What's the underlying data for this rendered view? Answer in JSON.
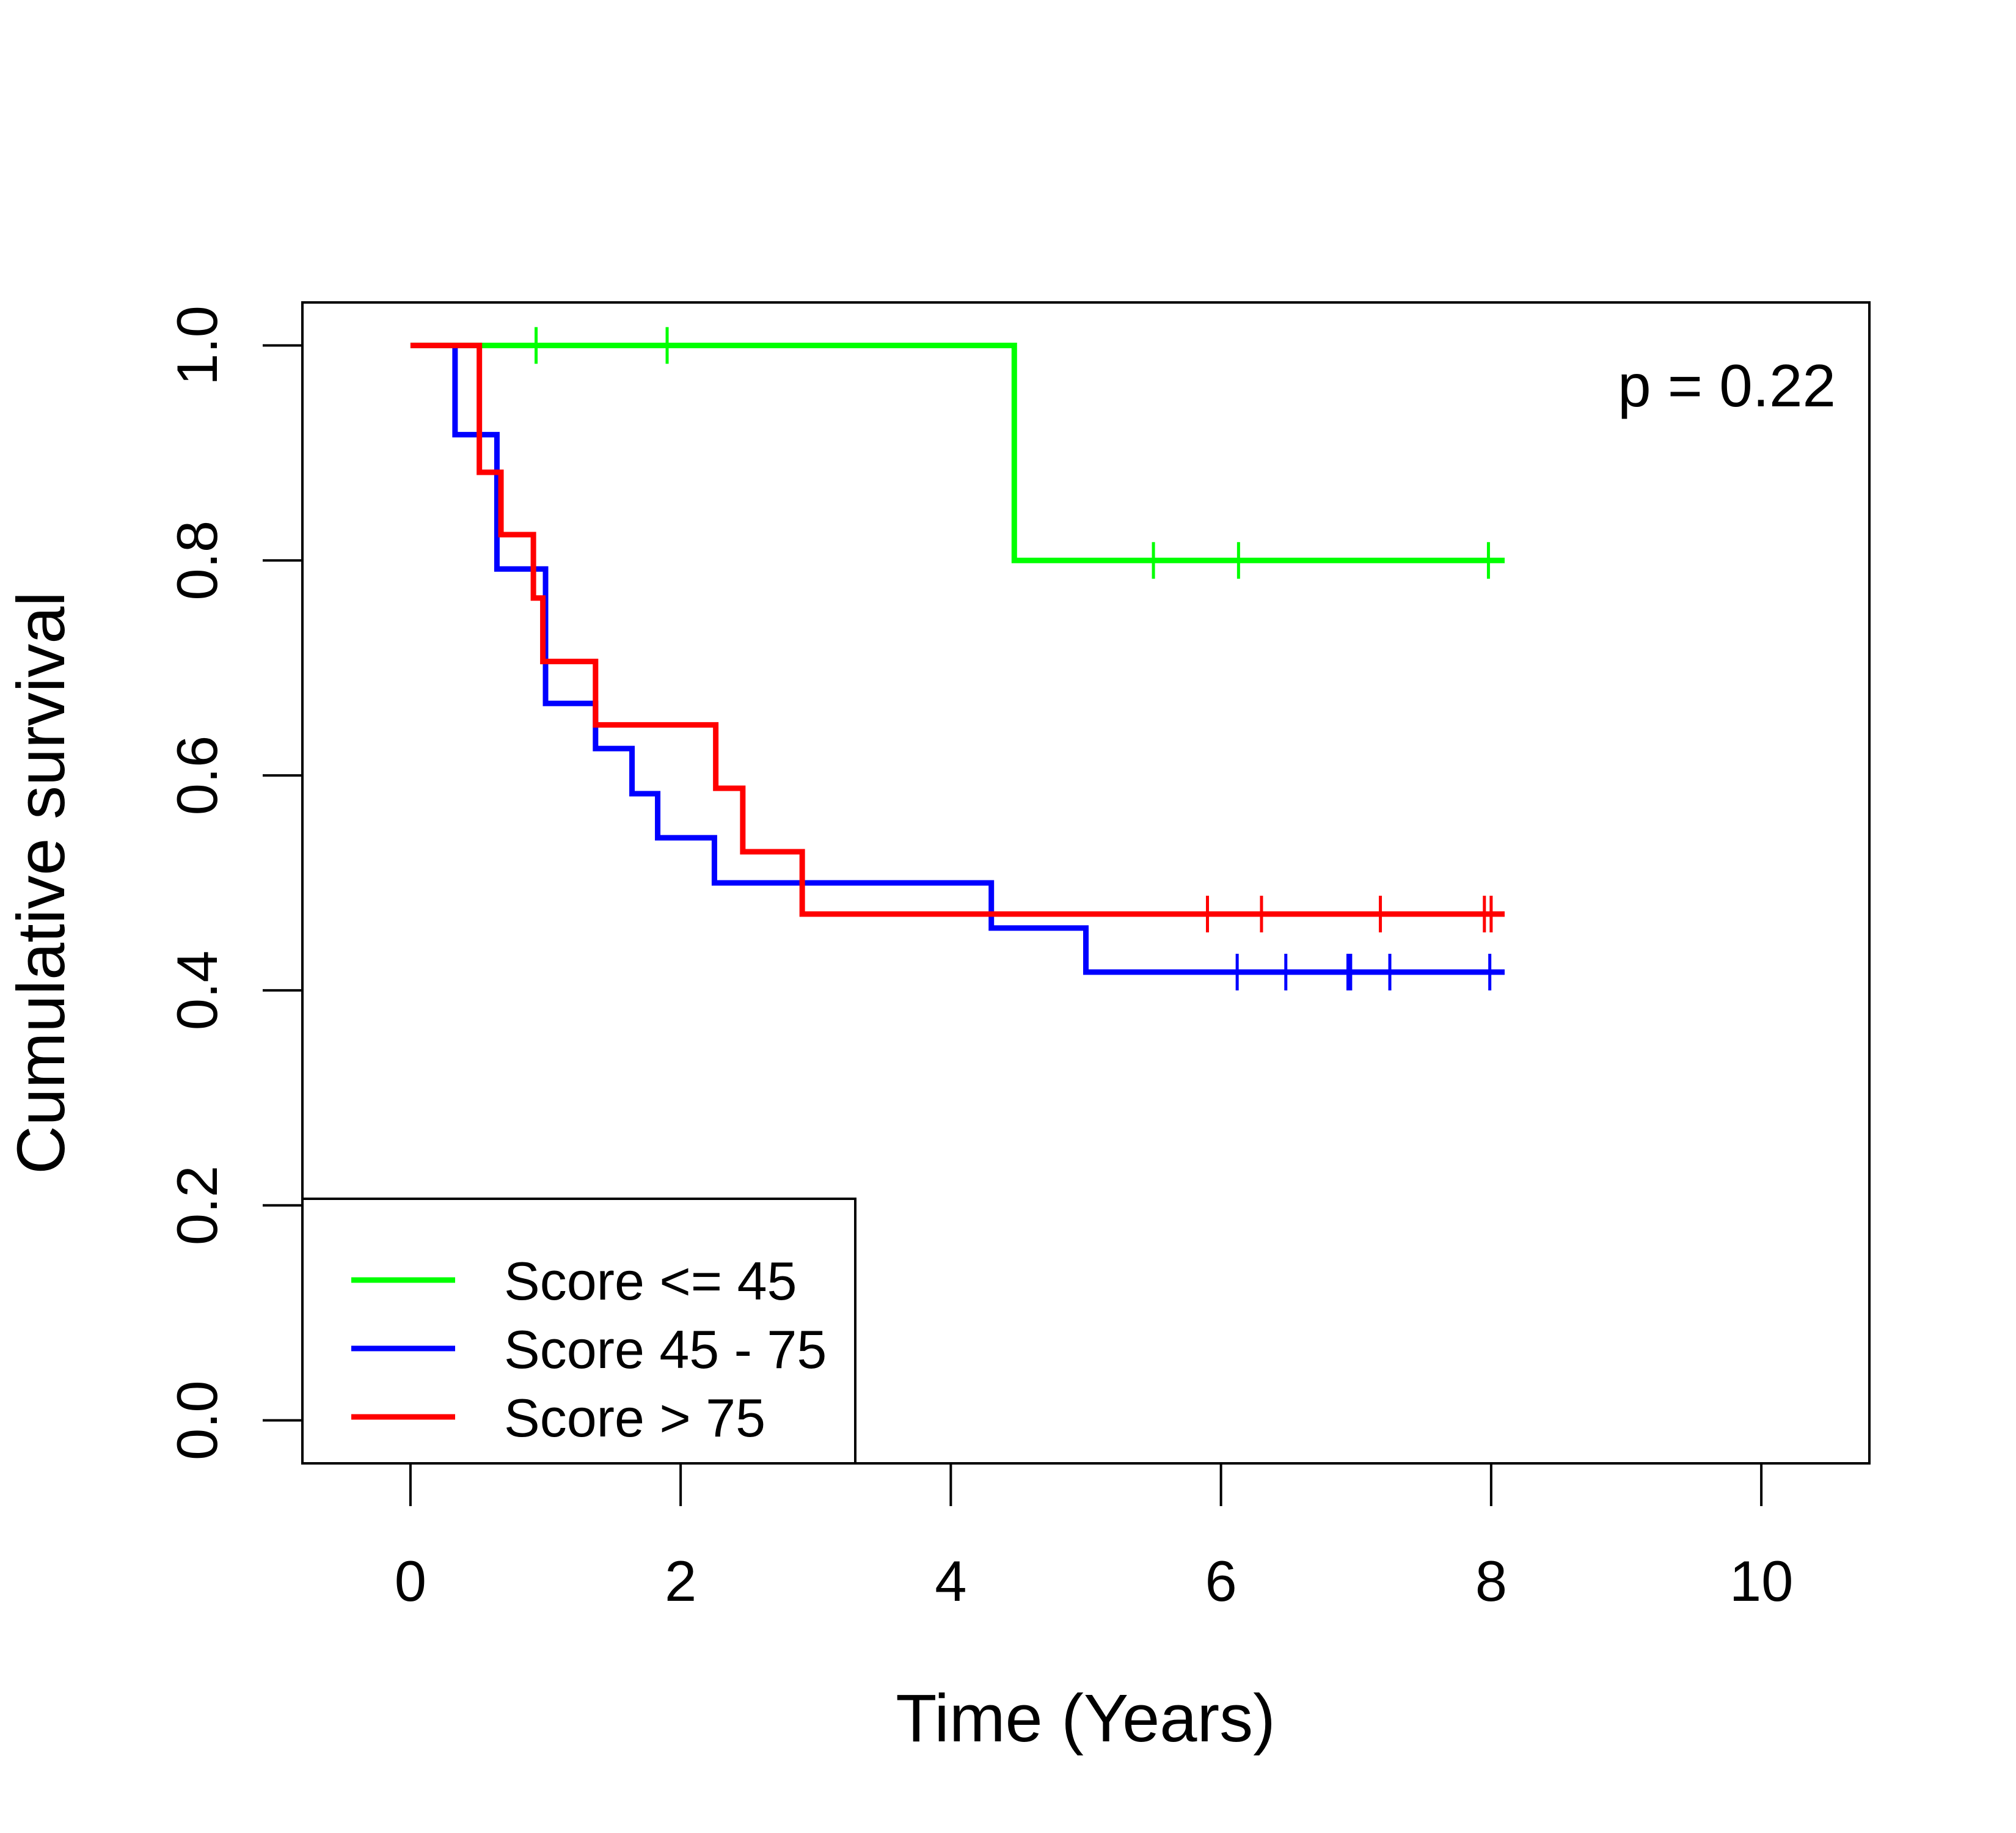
{
  "chart_data": {
    "type": "line",
    "subtype": "kaplan-meier step survival curves",
    "xlabel": "Time (Years)",
    "ylabel": "Cumulative survival",
    "xlim": [
      -0.8,
      10.8
    ],
    "ylim": [
      -0.04,
      1.04
    ],
    "xticks": [
      0,
      2,
      4,
      6,
      8,
      10
    ],
    "xtick_labels": [
      "0",
      "2",
      "4",
      "6",
      "8",
      "10"
    ],
    "yticks": [
      0.0,
      0.2,
      0.4,
      0.6,
      0.8,
      1.0
    ],
    "ytick_labels": [
      "0.0",
      "0.2",
      "0.4",
      "0.6",
      "0.8",
      "1.0"
    ],
    "annotation": "p = 0.22",
    "grid": false,
    "legend_position": "bottom-left",
    "series": [
      {
        "name": "Score <= 45",
        "color": "#00ff00",
        "steps": [
          [
            0,
            1.0
          ],
          [
            4.47,
            0.8
          ]
        ],
        "end_x": 8.1,
        "censor_times": [
          0.93,
          1.9,
          5.5,
          6.13,
          7.98
        ]
      },
      {
        "name": "Score 45 - 75",
        "color": "#0000ff",
        "steps": [
          [
            0.33,
            1.0
          ],
          [
            0.33,
            0.917
          ],
          [
            0.64,
            0.792
          ],
          [
            1.0,
            0.667
          ],
          [
            1.37,
            0.625
          ],
          [
            1.64,
            0.583
          ],
          [
            1.83,
            0.542
          ],
          [
            2.25,
            0.5
          ],
          [
            4.3,
            0.458
          ],
          [
            5.0,
            0.417
          ]
        ],
        "end_x": 8.1,
        "censor_times": [
          6.12,
          6.48,
          6.94,
          6.96,
          7.25,
          7.99
        ]
      },
      {
        "name": "Score > 75",
        "color": "#ff0000",
        "steps": [
          [
            0,
            1.0
          ],
          [
            0.51,
            0.882
          ],
          [
            0.67,
            0.824
          ],
          [
            0.91,
            0.765
          ],
          [
            0.98,
            0.706
          ],
          [
            1.37,
            0.647
          ],
          [
            2.26,
            0.588
          ],
          [
            2.46,
            0.529
          ],
          [
            2.9,
            0.471
          ]
        ],
        "end_x": 8.1,
        "censor_times": [
          5.9,
          6.3,
          7.18,
          7.95,
          8.0
        ]
      }
    ]
  }
}
